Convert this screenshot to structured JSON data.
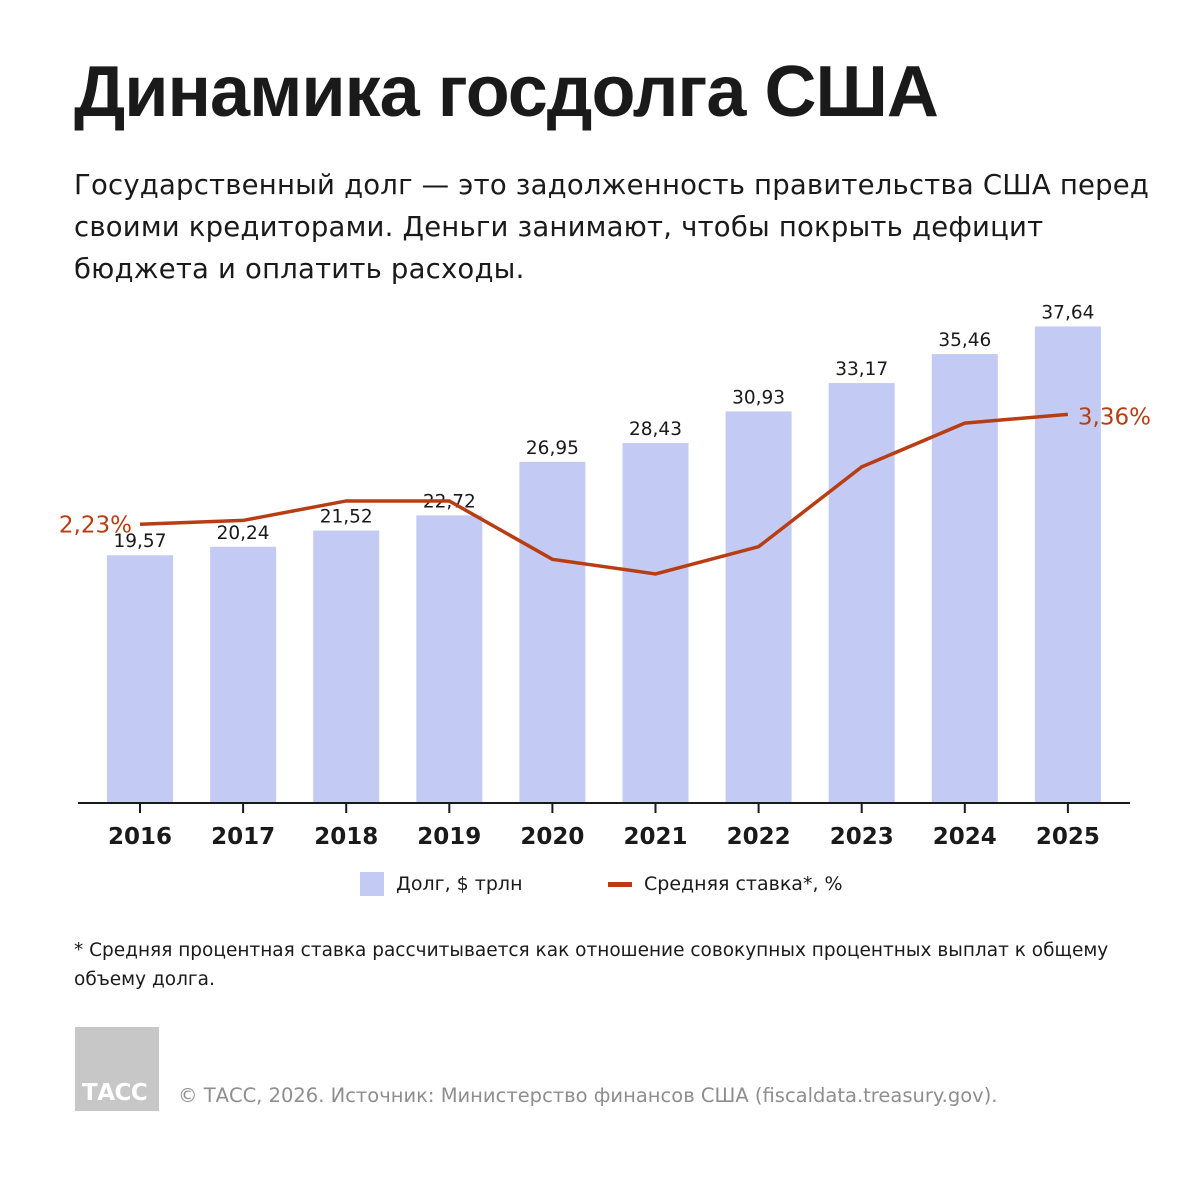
{
  "title": "Динамика госдолга США",
  "subtitle": "Государственный долг — это задолженность правительства США перед своими кредиторами. Деньги занимают, чтобы покрыть дефицит бюджета и оплатить расходы.",
  "chart_data": {
    "type": "bar",
    "categories": [
      "2016",
      "2017",
      "2018",
      "2019",
      "2020",
      "2021",
      "2022",
      "2023",
      "2024",
      "2025"
    ],
    "series": [
      {
        "name": "Долг, $ трлн",
        "type": "bar",
        "values": [
          19.57,
          20.24,
          21.52,
          22.72,
          26.95,
          28.43,
          30.93,
          33.17,
          35.46,
          37.64
        ],
        "labels": [
          "19,57",
          "20,24",
          "21,52",
          "22,72",
          "26,95",
          "28,43",
          "30,93",
          "33,17",
          "35,46",
          "37,64"
        ],
        "color": "#c3cbf5"
      },
      {
        "name": "Средняя ставка*, %",
        "type": "line",
        "values": [
          2.23,
          2.27,
          2.47,
          2.47,
          1.87,
          1.72,
          2.0,
          2.82,
          3.27,
          3.36
        ],
        "labels": [
          "2,23%",
          "",
          "",
          "",
          "",
          "",
          "",
          "",
          "",
          "3,36%"
        ],
        "color": "#b83d13"
      }
    ],
    "legend": "bottom"
  },
  "footnote": "* Средняя процентная ставка рассчитывается как отношение совокупных процентных выплат к общему объему долга.",
  "logo_text": "ТАСС",
  "source": "© ТАСС, 2026. Источник: Министерство финансов США (fiscaldata.treasury.gov)."
}
